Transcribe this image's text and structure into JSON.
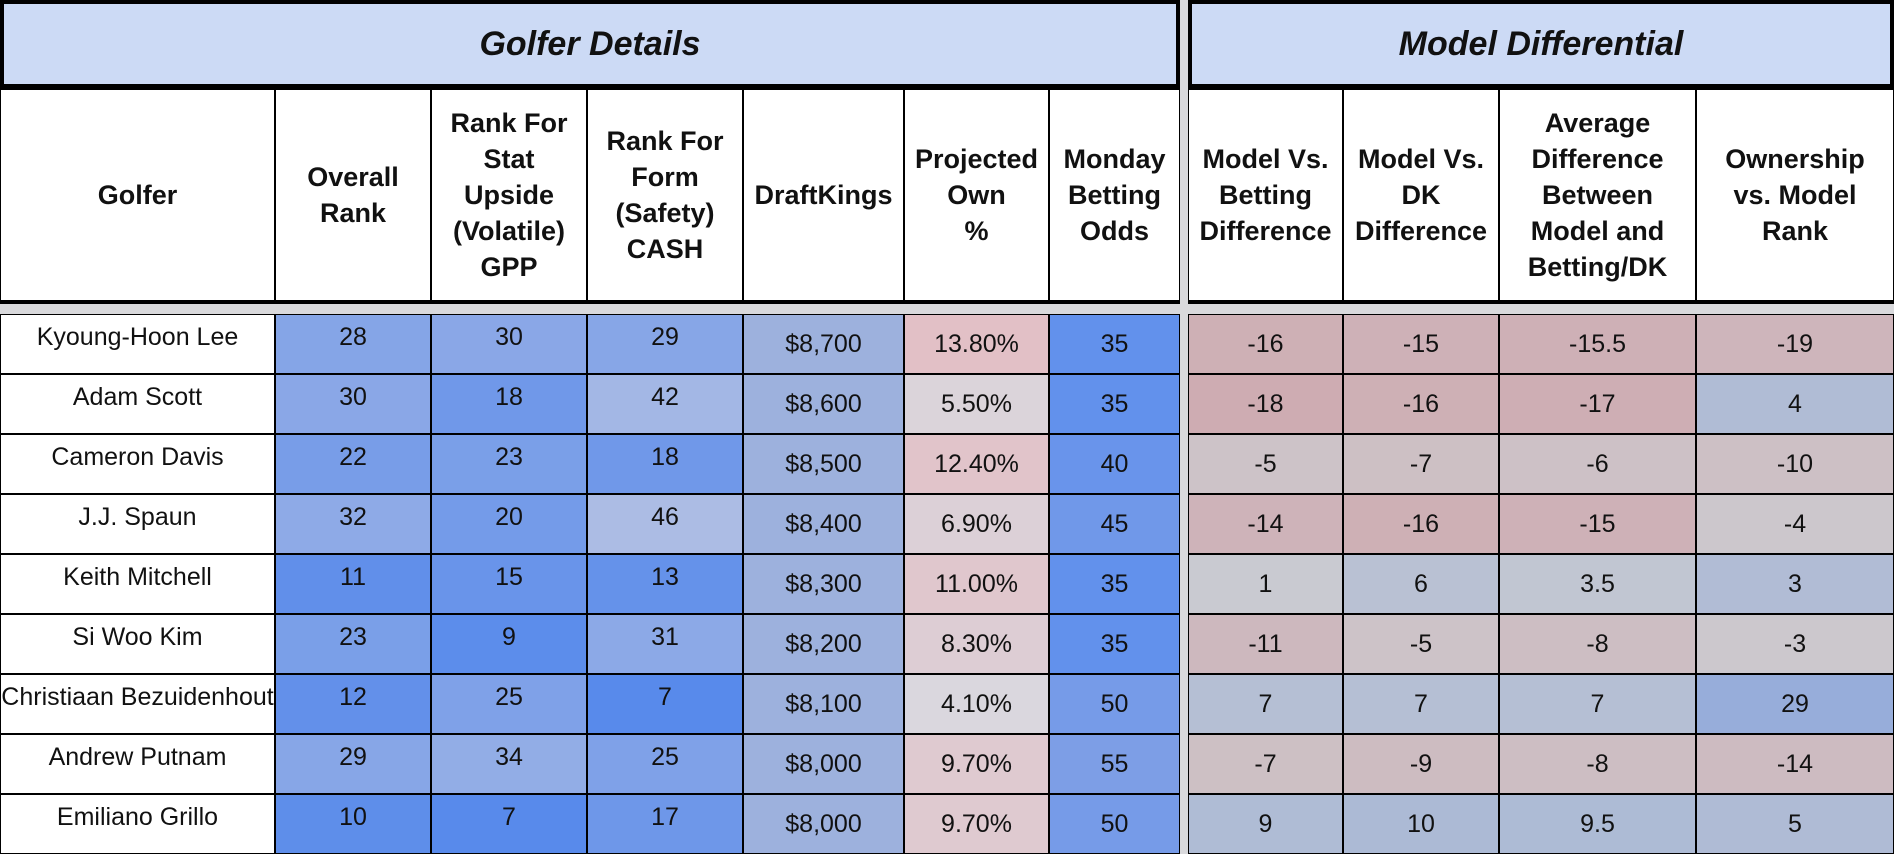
{
  "golfer_details": {
    "title": "Golfer Details",
    "columns": [
      "Golfer",
      "Overall\nRank",
      "Rank For\nStat\nUpside\n(Volatile)\nGPP",
      "Rank For\nForm\n(Safety)\nCASH",
      "DraftKings",
      "Projected\nOwn\n%",
      "Monday\nBetting\nOdds"
    ],
    "rows": [
      [
        "Kyoung-Hoon Lee",
        "28",
        "30",
        "29",
        "$8,700",
        "13.80%",
        "35"
      ],
      [
        "Adam Scott",
        "30",
        "18",
        "42",
        "$8,600",
        "5.50%",
        "35"
      ],
      [
        "Cameron Davis",
        "22",
        "23",
        "18",
        "$8,500",
        "12.40%",
        "40"
      ],
      [
        "J.J. Spaun",
        "32",
        "20",
        "46",
        "$8,400",
        "6.90%",
        "45"
      ],
      [
        "Keith Mitchell",
        "11",
        "15",
        "13",
        "$8,300",
        "11.00%",
        "35"
      ],
      [
        "Si Woo Kim",
        "23",
        "9",
        "31",
        "$8,200",
        "8.30%",
        "35"
      ],
      [
        "Christiaan Bezuidenhout",
        "12",
        "25",
        "7",
        "$8,100",
        "4.10%",
        "50"
      ],
      [
        "Andrew Putnam",
        "29",
        "34",
        "25",
        "$8,000",
        "9.70%",
        "55"
      ],
      [
        "Emiliano Grillo",
        "10",
        "7",
        "17",
        "$8,000",
        "9.70%",
        "50"
      ]
    ]
  },
  "model_differential": {
    "title": "Model Differential",
    "columns": [
      "Model Vs.\nBetting\nDifference",
      "Model Vs.\nDK\nDifference",
      "Average\nDifference\nBetween\nModel and\nBetting/DK",
      "Ownership\nvs. Model\nRank"
    ],
    "rows": [
      [
        "-16",
        "-15",
        "-15.5",
        "-19"
      ],
      [
        "-18",
        "-16",
        "-17",
        "4"
      ],
      [
        "-5",
        "-7",
        "-6",
        "-10"
      ],
      [
        "-14",
        "-16",
        "-15",
        "-4"
      ],
      [
        "1",
        "6",
        "3.5",
        "3"
      ],
      [
        "-11",
        "-5",
        "-8",
        "-3"
      ],
      [
        "7",
        "7",
        "7",
        "29"
      ],
      [
        "-7",
        "-9",
        "-8",
        "-14"
      ],
      [
        "9",
        "10",
        "9.5",
        "5"
      ]
    ]
  }
}
